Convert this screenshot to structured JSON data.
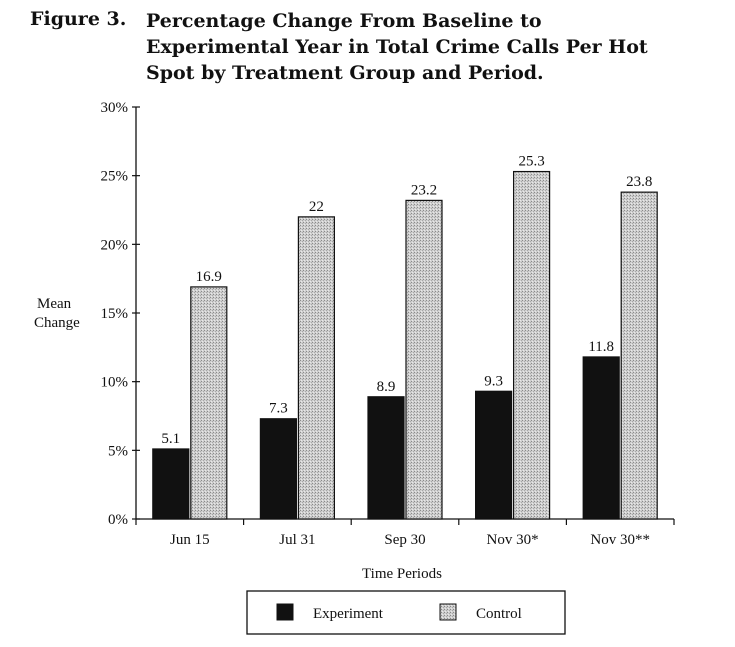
{
  "figure": {
    "label": "Figure 3.",
    "title_lines": [
      "Percentage Change From Baseline to",
      "Experimental Year in Total Crime Calls Per Hot",
      "Spot by Treatment Group and Period."
    ]
  },
  "chart_data": {
    "type": "bar",
    "categories": [
      "Jun 15",
      "Jul 31",
      "Sep 30",
      "Nov 30*",
      "Nov 30**"
    ],
    "series": [
      {
        "name": "Experiment",
        "values": [
          5.1,
          7.3,
          8.9,
          9.3,
          11.8
        ],
        "labels": [
          "5.1",
          "7.3",
          "8.9",
          "9.3",
          "11.8"
        ],
        "color": "#111111"
      },
      {
        "name": "Control",
        "values": [
          16.9,
          22,
          23.2,
          25.3,
          23.8
        ],
        "labels": [
          "16.9",
          "22",
          "23.2",
          "25.3",
          "23.8"
        ],
        "color": "#c8c8c8"
      }
    ],
    "ylim": [
      0,
      30
    ],
    "yticks": [
      0,
      5,
      10,
      15,
      20,
      25,
      30
    ],
    "ytick_labels": [
      "0%",
      "5%",
      "10%",
      "15%",
      "20%",
      "25%",
      "30%"
    ],
    "ylabel_lines": [
      "Mean",
      "Change"
    ],
    "xlabel": "Time Periods",
    "grid": false,
    "legend_position": "bottom-center"
  }
}
